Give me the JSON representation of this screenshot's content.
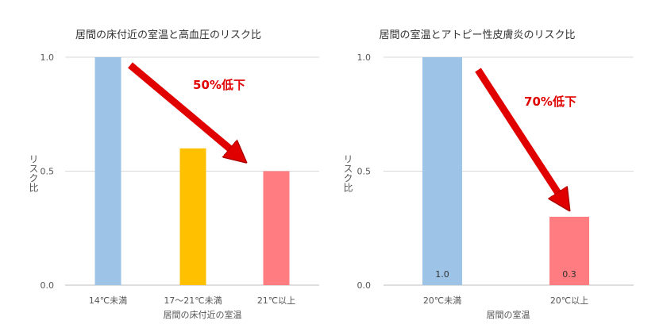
{
  "chart_data": [
    {
      "type": "bar",
      "title": "居間の床付近の室温と高血圧のリスク比",
      "xlabel": "居間の床付近の室温",
      "ylabel": "リスク比",
      "categories": [
        "14℃未満",
        "17～21℃未満",
        "21℃以上"
      ],
      "values": [
        1.0,
        0.6,
        0.5
      ],
      "colors": [
        "#9dc3e6",
        "#ffc000",
        "#ff7c80"
      ],
      "ylim": [
        0,
        1.0
      ],
      "yticks": [
        "0.0",
        "0.5",
        "1.0"
      ],
      "grid": true,
      "annotation": {
        "text": "50%低下",
        "color": "#e00000"
      }
    },
    {
      "type": "bar",
      "title": "居間の室温とアトピー性皮膚炎のリスク比",
      "xlabel": "居間の室温",
      "ylabel": "リスク比",
      "categories": [
        "20℃未満",
        "20℃以上"
      ],
      "values": [
        1.0,
        0.3
      ],
      "data_labels": [
        "1.0",
        "0.3"
      ],
      "colors": [
        "#9dc3e6",
        "#ff7c80"
      ],
      "ylim": [
        0,
        1.0
      ],
      "yticks": [
        "0.0",
        "0.5",
        "1.0"
      ],
      "grid": true,
      "annotation": {
        "text": "70%低下",
        "color": "#e00000"
      }
    }
  ]
}
